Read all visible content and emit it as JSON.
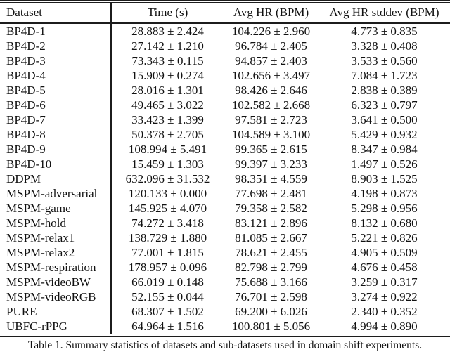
{
  "colors": {
    "background": "#ffffff",
    "text": "#111111",
    "rule": "#1c1c1c"
  },
  "table": {
    "columns": [
      "Dataset",
      "Time (s)",
      "Avg HR (BPM)",
      "Avg HR stddev (BPM)"
    ],
    "rows": [
      {
        "dataset": "BP4D-1",
        "time_s": "28.883 ± 2.424",
        "avg_hr_bpm": "104.226 ± 2.960",
        "avg_hr_stddev_bpm": "4.773 ± 0.835"
      },
      {
        "dataset": "BP4D-2",
        "time_s": "27.142 ± 1.210",
        "avg_hr_bpm": "96.784 ± 2.405",
        "avg_hr_stddev_bpm": "3.328 ± 0.408"
      },
      {
        "dataset": "BP4D-3",
        "time_s": "73.343 ± 0.115",
        "avg_hr_bpm": "94.857 ± 2.403",
        "avg_hr_stddev_bpm": "3.533 ± 0.560"
      },
      {
        "dataset": "BP4D-4",
        "time_s": "15.909 ± 0.274",
        "avg_hr_bpm": "102.656 ± 3.497",
        "avg_hr_stddev_bpm": "7.084 ± 1.723"
      },
      {
        "dataset": "BP4D-5",
        "time_s": "28.016 ± 1.301",
        "avg_hr_bpm": "98.426 ± 2.646",
        "avg_hr_stddev_bpm": "2.838 ± 0.389"
      },
      {
        "dataset": "BP4D-6",
        "time_s": "49.465 ± 3.022",
        "avg_hr_bpm": "102.582 ± 2.668",
        "avg_hr_stddev_bpm": "6.323 ± 0.797"
      },
      {
        "dataset": "BP4D-7",
        "time_s": "33.423 ± 1.399",
        "avg_hr_bpm": "97.581 ± 2.723",
        "avg_hr_stddev_bpm": "3.641 ± 0.500"
      },
      {
        "dataset": "BP4D-8",
        "time_s": "50.378 ± 2.705",
        "avg_hr_bpm": "104.589 ± 3.100",
        "avg_hr_stddev_bpm": "5.429 ± 0.932"
      },
      {
        "dataset": "BP4D-9",
        "time_s": "108.994 ± 5.491",
        "avg_hr_bpm": "99.365 ± 2.615",
        "avg_hr_stddev_bpm": "8.347 ± 0.984"
      },
      {
        "dataset": "BP4D-10",
        "time_s": "15.459 ± 1.303",
        "avg_hr_bpm": "99.397 ± 3.233",
        "avg_hr_stddev_bpm": "1.497 ± 0.526"
      },
      {
        "dataset": "DDPM",
        "time_s": "632.096 ± 31.532",
        "avg_hr_bpm": "98.351 ± 4.559",
        "avg_hr_stddev_bpm": "8.903 ± 1.525"
      },
      {
        "dataset": "MSPM-adversarial",
        "time_s": "120.133 ± 0.000",
        "avg_hr_bpm": "77.698 ± 2.481",
        "avg_hr_stddev_bpm": "4.198 ± 0.873"
      },
      {
        "dataset": "MSPM-game",
        "time_s": "145.925 ± 4.070",
        "avg_hr_bpm": "79.358 ± 2.582",
        "avg_hr_stddev_bpm": "5.298 ± 0.956"
      },
      {
        "dataset": "MSPM-hold",
        "time_s": "74.272 ± 3.418",
        "avg_hr_bpm": "83.121 ± 2.896",
        "avg_hr_stddev_bpm": "8.132 ± 0.680"
      },
      {
        "dataset": "MSPM-relax1",
        "time_s": "138.729 ± 1.880",
        "avg_hr_bpm": "81.085 ± 2.667",
        "avg_hr_stddev_bpm": "5.221 ± 0.826"
      },
      {
        "dataset": "MSPM-relax2",
        "time_s": "77.001 ± 1.815",
        "avg_hr_bpm": "78.621 ± 2.455",
        "avg_hr_stddev_bpm": "4.905 ± 0.509"
      },
      {
        "dataset": "MSPM-respiration",
        "time_s": "178.957 ± 0.096",
        "avg_hr_bpm": "82.798 ± 2.799",
        "avg_hr_stddev_bpm": "4.676 ± 0.458"
      },
      {
        "dataset": "MSPM-videoBW",
        "time_s": "66.019 ± 0.148",
        "avg_hr_bpm": "75.688 ± 3.166",
        "avg_hr_stddev_bpm": "3.259 ± 0.317"
      },
      {
        "dataset": "MSPM-videoRGB",
        "time_s": "52.155 ± 0.044",
        "avg_hr_bpm": "76.701 ± 2.598",
        "avg_hr_stddev_bpm": "3.274 ± 0.922"
      },
      {
        "dataset": "PURE",
        "time_s": "68.307 ± 1.502",
        "avg_hr_bpm": "69.200 ± 6.026",
        "avg_hr_stddev_bpm": "2.340 ± 0.352"
      },
      {
        "dataset": "UBFC-rPPG",
        "time_s": "64.964 ± 1.516",
        "avg_hr_bpm": "100.801 ± 5.056",
        "avg_hr_stddev_bpm": "4.994 ± 0.890"
      }
    ]
  },
  "caption": "Table 1. Summary statistics of datasets and sub-datasets used in domain shift experiments."
}
